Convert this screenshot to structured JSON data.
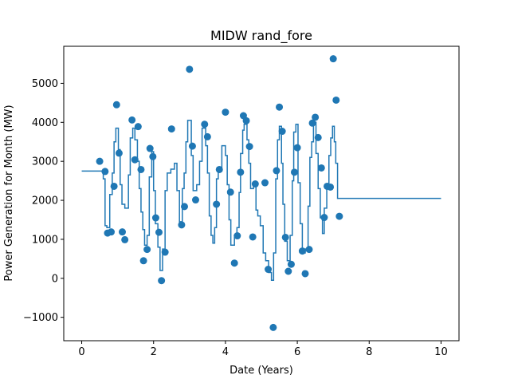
{
  "chart_data": {
    "type": "scatter",
    "title": "MIDW rand_fore",
    "xlabel": "Date (Years)",
    "ylabel": "Power Generation for Month (MW)",
    "xlim": [
      -0.5,
      10.5
    ],
    "ylim": [
      -1600,
      5950
    ],
    "xticks": [
      0,
      2,
      4,
      6,
      8,
      10
    ],
    "yticks": [
      -1000,
      0,
      1000,
      2000,
      3000,
      4000,
      5000
    ],
    "grid": false,
    "color": "#1f77b4",
    "scatter_points": [
      [
        0.5,
        3000
      ],
      [
        0.65,
        2740
      ],
      [
        0.72,
        1160
      ],
      [
        0.82,
        1190
      ],
      [
        0.9,
        2360
      ],
      [
        0.97,
        4450
      ],
      [
        1.04,
        3210
      ],
      [
        1.13,
        1190
      ],
      [
        1.2,
        990
      ],
      [
        1.4,
        4060
      ],
      [
        1.48,
        3040
      ],
      [
        1.57,
        3890
      ],
      [
        1.65,
        2790
      ],
      [
        1.72,
        450
      ],
      [
        1.82,
        740
      ],
      [
        1.9,
        3330
      ],
      [
        1.98,
        3120
      ],
      [
        2.06,
        1550
      ],
      [
        2.15,
        1180
      ],
      [
        2.22,
        -60
      ],
      [
        2.32,
        670
      ],
      [
        2.5,
        3830
      ],
      [
        2.78,
        1370
      ],
      [
        2.86,
        1840
      ],
      [
        3.0,
        5360
      ],
      [
        3.08,
        3390
      ],
      [
        3.17,
        2010
      ],
      [
        3.42,
        3950
      ],
      [
        3.5,
        3630
      ],
      [
        3.75,
        1900
      ],
      [
        3.83,
        2790
      ],
      [
        4.0,
        4260
      ],
      [
        4.14,
        2210
      ],
      [
        4.25,
        390
      ],
      [
        4.33,
        1090
      ],
      [
        4.42,
        2720
      ],
      [
        4.5,
        4170
      ],
      [
        4.58,
        4040
      ],
      [
        4.67,
        3380
      ],
      [
        4.76,
        1060
      ],
      [
        4.83,
        2420
      ],
      [
        5.1,
        2450
      ],
      [
        5.19,
        230
      ],
      [
        5.33,
        -1260
      ],
      [
        5.42,
        2760
      ],
      [
        5.5,
        4390
      ],
      [
        5.58,
        3770
      ],
      [
        5.67,
        1050
      ],
      [
        5.75,
        180
      ],
      [
        5.83,
        360
      ],
      [
        5.92,
        2720
      ],
      [
        6.0,
        3350
      ],
      [
        6.14,
        700
      ],
      [
        6.22,
        120
      ],
      [
        6.33,
        740
      ],
      [
        6.42,
        3980
      ],
      [
        6.5,
        4130
      ],
      [
        6.58,
        3610
      ],
      [
        6.67,
        2830
      ],
      [
        6.75,
        1560
      ],
      [
        6.83,
        2360
      ],
      [
        6.92,
        2340
      ],
      [
        7.0,
        5630
      ],
      [
        7.08,
        4570
      ],
      [
        7.17,
        1590
      ]
    ],
    "line_steps": [
      [
        0,
        2750
      ],
      [
        0.6,
        2750
      ],
      [
        0.6,
        2550
      ],
      [
        0.65,
        2550
      ],
      [
        0.65,
        1350
      ],
      [
        0.7,
        1350
      ],
      [
        0.7,
        1300
      ],
      [
        0.78,
        1300
      ],
      [
        0.78,
        2150
      ],
      [
        0.85,
        2150
      ],
      [
        0.85,
        2700
      ],
      [
        0.9,
        2700
      ],
      [
        0.9,
        3500
      ],
      [
        0.95,
        3500
      ],
      [
        0.95,
        3850
      ],
      [
        1.02,
        3850
      ],
      [
        1.02,
        3300
      ],
      [
        1.07,
        3300
      ],
      [
        1.07,
        2400
      ],
      [
        1.12,
        2400
      ],
      [
        1.12,
        1900
      ],
      [
        1.2,
        1900
      ],
      [
        1.2,
        1800
      ],
      [
        1.3,
        1800
      ],
      [
        1.3,
        2650
      ],
      [
        1.35,
        2650
      ],
      [
        1.35,
        3600
      ],
      [
        1.42,
        3600
      ],
      [
        1.42,
        3850
      ],
      [
        1.48,
        3850
      ],
      [
        1.48,
        3550
      ],
      [
        1.55,
        3550
      ],
      [
        1.55,
        3000
      ],
      [
        1.6,
        3000
      ],
      [
        1.6,
        2300
      ],
      [
        1.65,
        2300
      ],
      [
        1.65,
        1700
      ],
      [
        1.7,
        1700
      ],
      [
        1.7,
        1250
      ],
      [
        1.75,
        1250
      ],
      [
        1.75,
        850
      ],
      [
        1.82,
        850
      ],
      [
        1.82,
        1100
      ],
      [
        1.88,
        1100
      ],
      [
        1.88,
        2600
      ],
      [
        1.95,
        2600
      ],
      [
        1.95,
        3250
      ],
      [
        2.0,
        3250
      ],
      [
        2.0,
        2250
      ],
      [
        2.05,
        2250
      ],
      [
        2.05,
        1400
      ],
      [
        2.12,
        1400
      ],
      [
        2.12,
        800
      ],
      [
        2.18,
        800
      ],
      [
        2.18,
        200
      ],
      [
        2.25,
        200
      ],
      [
        2.25,
        750
      ],
      [
        2.32,
        750
      ],
      [
        2.32,
        2250
      ],
      [
        2.38,
        2250
      ],
      [
        2.38,
        2700
      ],
      [
        2.48,
        2700
      ],
      [
        2.48,
        2800
      ],
      [
        2.58,
        2800
      ],
      [
        2.58,
        2950
      ],
      [
        2.65,
        2950
      ],
      [
        2.65,
        2250
      ],
      [
        2.72,
        2250
      ],
      [
        2.72,
        1450
      ],
      [
        2.8,
        1450
      ],
      [
        2.8,
        2300
      ],
      [
        2.85,
        2300
      ],
      [
        2.85,
        2700
      ],
      [
        2.9,
        2700
      ],
      [
        2.9,
        3500
      ],
      [
        2.95,
        3500
      ],
      [
        2.95,
        4050
      ],
      [
        3.05,
        4050
      ],
      [
        3.05,
        3150
      ],
      [
        3.1,
        3150
      ],
      [
        3.1,
        2250
      ],
      [
        3.2,
        2250
      ],
      [
        3.2,
        2400
      ],
      [
        3.28,
        2400
      ],
      [
        3.28,
        3000
      ],
      [
        3.35,
        3000
      ],
      [
        3.35,
        3850
      ],
      [
        3.45,
        3850
      ],
      [
        3.45,
        3400
      ],
      [
        3.5,
        3400
      ],
      [
        3.5,
        2700
      ],
      [
        3.55,
        2700
      ],
      [
        3.55,
        1600
      ],
      [
        3.6,
        1600
      ],
      [
        3.6,
        1100
      ],
      [
        3.65,
        1100
      ],
      [
        3.65,
        900
      ],
      [
        3.7,
        900
      ],
      [
        3.7,
        1300
      ],
      [
        3.75,
        1300
      ],
      [
        3.75,
        2550
      ],
      [
        3.8,
        2550
      ],
      [
        3.8,
        2750
      ],
      [
        3.9,
        2750
      ],
      [
        3.9,
        3400
      ],
      [
        4.0,
        3400
      ],
      [
        4.0,
        3150
      ],
      [
        4.05,
        3150
      ],
      [
        4.05,
        2400
      ],
      [
        4.1,
        2400
      ],
      [
        4.1,
        1500
      ],
      [
        4.15,
        1500
      ],
      [
        4.15,
        850
      ],
      [
        4.25,
        850
      ],
      [
        4.25,
        1050
      ],
      [
        4.32,
        1050
      ],
      [
        4.32,
        1300
      ],
      [
        4.38,
        1300
      ],
      [
        4.38,
        2200
      ],
      [
        4.42,
        2200
      ],
      [
        4.42,
        3200
      ],
      [
        4.48,
        3200
      ],
      [
        4.48,
        3800
      ],
      [
        4.52,
        3800
      ],
      [
        4.52,
        3950
      ],
      [
        4.6,
        3950
      ],
      [
        4.6,
        3550
      ],
      [
        4.65,
        3550
      ],
      [
        4.65,
        2950
      ],
      [
        4.7,
        2950
      ],
      [
        4.7,
        2300
      ],
      [
        4.78,
        2300
      ],
      [
        4.78,
        2450
      ],
      [
        4.85,
        2450
      ],
      [
        4.85,
        1750
      ],
      [
        4.9,
        1750
      ],
      [
        4.9,
        1600
      ],
      [
        4.97,
        1600
      ],
      [
        4.97,
        1350
      ],
      [
        5.05,
        1350
      ],
      [
        5.05,
        650
      ],
      [
        5.12,
        650
      ],
      [
        5.12,
        450
      ],
      [
        5.2,
        450
      ],
      [
        5.2,
        150
      ],
      [
        5.28,
        150
      ],
      [
        5.28,
        -50
      ],
      [
        5.34,
        -50
      ],
      [
        5.34,
        650
      ],
      [
        5.4,
        650
      ],
      [
        5.4,
        2550
      ],
      [
        5.45,
        2550
      ],
      [
        5.45,
        3550
      ],
      [
        5.5,
        3550
      ],
      [
        5.5,
        3900
      ],
      [
        5.56,
        3900
      ],
      [
        5.56,
        2950
      ],
      [
        5.6,
        2950
      ],
      [
        5.6,
        1900
      ],
      [
        5.65,
        1900
      ],
      [
        5.65,
        950
      ],
      [
        5.72,
        950
      ],
      [
        5.72,
        450
      ],
      [
        5.8,
        450
      ],
      [
        5.8,
        1100
      ],
      [
        5.86,
        1100
      ],
      [
        5.86,
        2500
      ],
      [
        5.9,
        2500
      ],
      [
        5.9,
        3750
      ],
      [
        5.96,
        3750
      ],
      [
        5.96,
        3950
      ],
      [
        6.02,
        3950
      ],
      [
        6.02,
        2450
      ],
      [
        6.08,
        2450
      ],
      [
        6.08,
        1400
      ],
      [
        6.14,
        1400
      ],
      [
        6.14,
        650
      ],
      [
        6.22,
        650
      ],
      [
        6.22,
        750
      ],
      [
        6.3,
        750
      ],
      [
        6.3,
        1850
      ],
      [
        6.35,
        1850
      ],
      [
        6.35,
        3100
      ],
      [
        6.4,
        3100
      ],
      [
        6.4,
        3500
      ],
      [
        6.45,
        3500
      ],
      [
        6.45,
        4000
      ],
      [
        6.52,
        4000
      ],
      [
        6.52,
        3200
      ],
      [
        6.58,
        3200
      ],
      [
        6.58,
        2300
      ],
      [
        6.64,
        2300
      ],
      [
        6.64,
        1550
      ],
      [
        6.7,
        1550
      ],
      [
        6.7,
        1150
      ],
      [
        6.75,
        1150
      ],
      [
        6.75,
        1800
      ],
      [
        6.82,
        1800
      ],
      [
        6.82,
        2300
      ],
      [
        6.88,
        2300
      ],
      [
        6.88,
        3150
      ],
      [
        6.93,
        3150
      ],
      [
        6.93,
        3600
      ],
      [
        6.98,
        3600
      ],
      [
        6.98,
        3900
      ],
      [
        7.03,
        3900
      ],
      [
        7.03,
        3500
      ],
      [
        7.07,
        3500
      ],
      [
        7.07,
        2950
      ],
      [
        7.12,
        2950
      ],
      [
        7.12,
        2050
      ],
      [
        10.0,
        2050
      ]
    ]
  }
}
